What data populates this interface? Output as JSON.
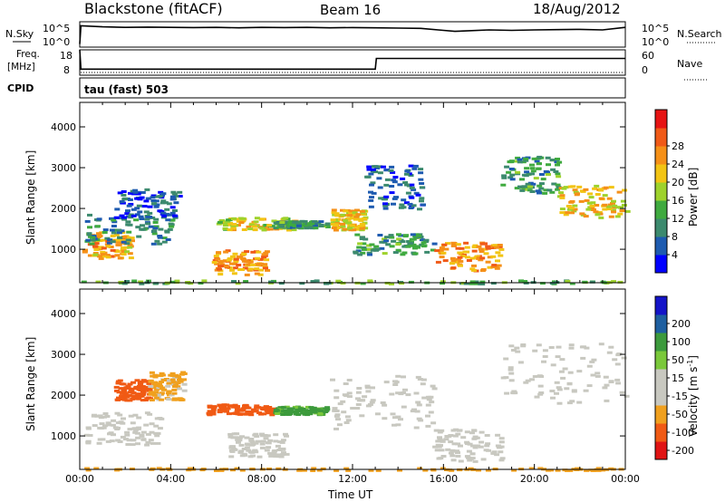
{
  "header": {
    "title": "Blackstone (fitACF)",
    "beam": "Beam 16",
    "date": "18/Aug/2012"
  },
  "chart_data": [
    {
      "type": "line",
      "name_panel": "noise",
      "left_label": "N.Sky",
      "right_label": "N.Search",
      "left_ticks": [
        "10^5",
        "10^0"
      ],
      "right_ticks": [
        "10^5",
        "10^0"
      ],
      "x": [
        0,
        0.05,
        1,
        2,
        3,
        4,
        5,
        6,
        7,
        8,
        9,
        10,
        11,
        12,
        13,
        14,
        15,
        16,
        16.5,
        17,
        18,
        19,
        20,
        21,
        22,
        23,
        24
      ],
      "series": [
        {
          "values": [
            0.6,
            4.2,
            4.0,
            3.9,
            3.95,
            3.9,
            3.85,
            3.9,
            3.8,
            3.9,
            3.85,
            3.9,
            3.8,
            3.85,
            3.8,
            3.75,
            3.7,
            3.3,
            3.1,
            3.2,
            3.4,
            3.3,
            3.4,
            3.45,
            3.5,
            3.4,
            3.9
          ]
        }
      ],
      "ylim": [
        0,
        5
      ]
    },
    {
      "type": "line",
      "name_panel": "frequency",
      "left_label_top": "Freq.",
      "left_label_bottom": "[MHz]",
      "right_label": "Nave",
      "left_ticks": [
        "18",
        "8"
      ],
      "right_ticks": [
        "60",
        "0"
      ],
      "x": [
        0,
        0.05,
        13,
        13.05,
        24
      ],
      "series": [
        {
          "values": [
            18,
            10.4,
            10.4,
            14.6,
            14.6
          ]
        }
      ],
      "ylim": [
        8,
        18
      ]
    },
    {
      "type": "heatmap",
      "name_panel": "cpid",
      "left_label": "CPID",
      "annotation": "tau (fast) 503"
    },
    {
      "type": "heatmap",
      "name_panel": "power",
      "ylabel": "Slant Range [km]",
      "yticks": [
        "1000",
        "2000",
        "3000",
        "4000"
      ],
      "ylim": [
        180,
        4600
      ],
      "xlim": [
        0,
        24
      ],
      "colorbar_label": "Power [dB]",
      "colorbar_ticks": [
        "4",
        "8",
        "12",
        "16",
        "20",
        "24",
        "28"
      ],
      "colors": [
        "#0000ff",
        "#1e5bb0",
        "#3c8a6e",
        "#3faa3f",
        "#9ed22c",
        "#f2c414",
        "#f59018",
        "#f05a18",
        "#e61414"
      ],
      "clusters": [
        {
          "t0": 0.1,
          "t1": 2.2,
          "r0": 800,
          "r1": 1450,
          "v": 24
        },
        {
          "t0": 0.2,
          "t1": 4.0,
          "r0": 1150,
          "r1": 1900,
          "v": 10
        },
        {
          "t0": 1.5,
          "t1": 4.3,
          "r0": 1800,
          "r1": 2500,
          "v": 6
        },
        {
          "t0": 5.8,
          "t1": 8.2,
          "r0": 400,
          "r1": 1000,
          "v": 26
        },
        {
          "t0": 6.0,
          "t1": 9.5,
          "r0": 1500,
          "r1": 1800,
          "v": 20
        },
        {
          "t0": 8.5,
          "t1": 10.8,
          "r0": 1550,
          "r1": 1720,
          "v": 12
        },
        {
          "t0": 11.0,
          "t1": 12.5,
          "r0": 1500,
          "r1": 2000,
          "v": 22
        },
        {
          "t0": 12.0,
          "t1": 15.5,
          "r0": 900,
          "r1": 1400,
          "v": 12
        },
        {
          "t0": 12.5,
          "t1": 15.0,
          "r0": 2000,
          "r1": 3100,
          "v": 6
        },
        {
          "t0": 15.5,
          "t1": 18.5,
          "r0": 500,
          "r1": 1200,
          "v": 26
        },
        {
          "t0": 18.5,
          "t1": 21.0,
          "r0": 2400,
          "r1": 3300,
          "v": 12
        },
        {
          "t0": 21.0,
          "t1": 24.0,
          "r0": 1800,
          "r1": 2600,
          "v": 22
        },
        {
          "t0": 0.0,
          "t1": 24.0,
          "r0": 180,
          "r1": 260,
          "v": 14
        }
      ]
    },
    {
      "type": "heatmap",
      "name_panel": "velocity",
      "ylabel": "Slant Range [km]",
      "yticks": [
        "1000",
        "2000",
        "3000",
        "4000"
      ],
      "xticks": [
        "00:00",
        "04:00",
        "08:00",
        "12:00",
        "16:00",
        "20:00",
        "00:00"
      ],
      "xlabel": "Time UT",
      "ylim": [
        180,
        4600
      ],
      "xlim": [
        0,
        24
      ],
      "colorbar_label_main": "Velocity [m s",
      "colorbar_label_sup": "-1",
      "colorbar_label_end": "]",
      "colorbar_ticks": [
        "-200",
        "-100",
        "-50",
        "-15",
        "15",
        "50",
        "100",
        "200"
      ],
      "colors": [
        "#e01414",
        "#f05a14",
        "#f0a01e",
        "#c8c8c0",
        "#c8c8c0",
        "#7ac83a",
        "#3c9a3c",
        "#1e5fa0",
        "#1414c8"
      ],
      "clusters": [
        {
          "t0": 0.1,
          "t1": 3.5,
          "r0": 800,
          "r1": 1600,
          "v": 0
        },
        {
          "t0": 1.5,
          "t1": 3.0,
          "r0": 1900,
          "r1": 2400,
          "v": -180
        },
        {
          "t0": 3.0,
          "t1": 4.5,
          "r0": 1900,
          "r1": 2600,
          "v": -60
        },
        {
          "t0": 5.5,
          "t1": 8.5,
          "r0": 1550,
          "r1": 1800,
          "v": -150
        },
        {
          "t0": 6.5,
          "t1": 9.0,
          "r0": 500,
          "r1": 1100,
          "v": 0
        },
        {
          "t0": 8.5,
          "t1": 10.8,
          "r0": 1550,
          "r1": 1750,
          "v": 60
        },
        {
          "t0": 11.0,
          "t1": 15.5,
          "r0": 1200,
          "r1": 2500,
          "v": 0
        },
        {
          "t0": 15.5,
          "t1": 18.5,
          "r0": 400,
          "r1": 1200,
          "v": 0
        },
        {
          "t0": 18.5,
          "t1": 24.0,
          "r0": 1800,
          "r1": 3300,
          "v": 0
        },
        {
          "t0": 0.0,
          "t1": 24.0,
          "r0": 180,
          "r1": 240,
          "v": -80
        }
      ]
    }
  ]
}
